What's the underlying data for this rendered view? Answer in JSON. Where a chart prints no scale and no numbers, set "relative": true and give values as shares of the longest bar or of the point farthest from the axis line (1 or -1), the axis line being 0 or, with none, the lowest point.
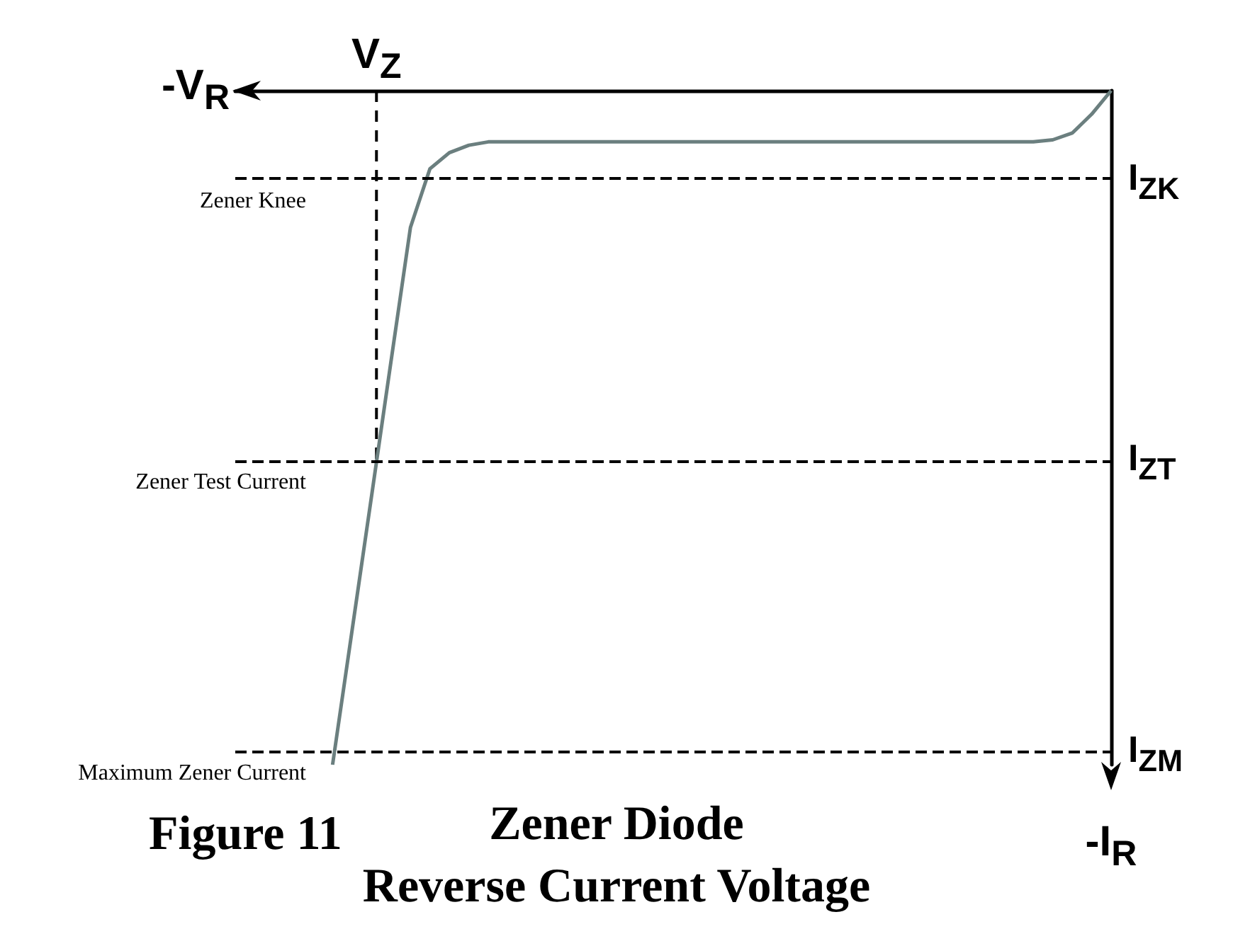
{
  "chart_data": {
    "type": "line",
    "title": "Zener Diode",
    "subtitle": "Reverse Current Voltage",
    "xlabel": "-V$_{R}$",
    "ylabel": "-I$_{R}$",
    "relative": true,
    "grid": false,
    "marker": "none",
    "line_style": "solid",
    "categories": [
      null,
      null,
      null,
      null,
      null,
      null,
      null,
      null,
      null,
      null,
      null,
      null,
      null,
      null,
      null,
      null,
      null,
      null,
      null,
      null,
      null,
      null,
      null,
      null,
      null,
      null,
      null,
      null,
      null,
      null,
      null,
      null,
      null,
      null,
      null,
      null,
      null,
      null,
      null,
      null,
      null,
      null,
      null,
      null,
      null,
      null
    ],
    "series": [
      {
        "color": "#6b7f7f",
        "values": [
          null,
          null,
          null,
          null,
          null,
          -1,
          -0.801,
          -0.602,
          -0.402,
          -0.203,
          -0.116,
          -0.092,
          -0.081,
          -0.076,
          -0.076,
          -0.076,
          -0.076,
          -0.076,
          -0.076,
          -0.076,
          -0.076,
          -0.076,
          -0.076,
          -0.076,
          -0.076,
          -0.076,
          -0.076,
          -0.076,
          -0.076,
          -0.076,
          -0.076,
          -0.076,
          -0.076,
          -0.076,
          -0.076,
          -0.076,
          -0.076,
          -0.076,
          -0.076,
          -0.076,
          -0.076,
          -0.076,
          -0.073,
          -0.063,
          -0.035,
          0
        ]
      }
    ],
    "ref_lines": [
      {
        "axis": "y",
        "value": -0.134,
        "label": "I$_{ZK}$",
        "color": "#000000",
        "line_style": "dashed"
      },
      {
        "axis": "y",
        "value": -0.551,
        "label": "I$_{ZT}$",
        "color": "#000000",
        "line_style": "dashed"
      },
      {
        "axis": "y",
        "value": -0.983,
        "label": "I$_{ZM}$",
        "color": "#000000",
        "line_style": "dashed"
      }
    ],
    "annotations": [
      "Figure 11",
      {
        "text": "V$_{Z}$",
        "y": -0.551
      },
      "Zener Knee",
      "Zener Test Current",
      "Maximum Zener Current"
    ]
  }
}
